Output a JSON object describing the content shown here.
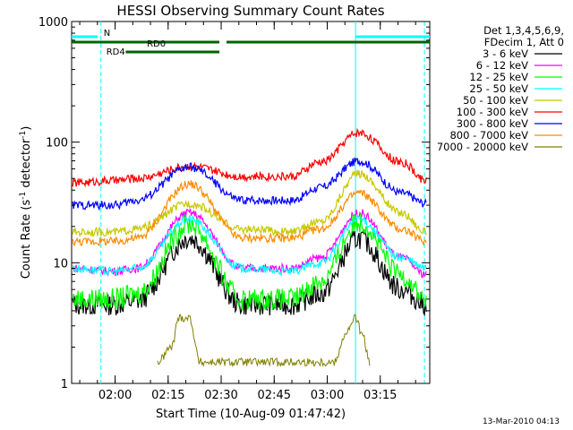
{
  "chart_data": {
    "type": "line",
    "title": "HESSI Observing Summary Count Rates",
    "xlabel": "Start Time (10-Aug-09 01:47:42)",
    "ylabel_main": "Count Rate (s",
    "ylabel_sup1": "-1",
    "ylabel_mid": " detector",
    "ylabel_sup2": "-1",
    "ylabel_end": ")",
    "yscale": "log",
    "ylim": [
      1,
      1000
    ],
    "xlim": [
      "01:47:42",
      "03:29:00"
    ],
    "x_ticks": [
      "02:00",
      "02:15",
      "02:30",
      "02:45",
      "03:00",
      "03:15"
    ],
    "y_ticks": [
      "1",
      "10",
      "100",
      "1000"
    ],
    "legend_header": [
      "Det 1,3,4,5,6,9,",
      "FDecim 1, Att 0"
    ],
    "series": [
      {
        "name": "3 - 6 keV",
        "color": "#000000",
        "x": [
          "01:48",
          "02:00",
          "02:06",
          "02:21",
          "02:36",
          "02:50",
          "02:58",
          "03:09",
          "03:21",
          "03:28"
        ],
        "y": [
          4.5,
          4.5,
          4.8,
          16,
          4.5,
          4.5,
          5.5,
          16,
          6,
          4.5
        ]
      },
      {
        "name": "6 - 12 keV",
        "color": "#ff00ff",
        "x": [
          "01:48",
          "02:00",
          "02:06",
          "02:21",
          "02:36",
          "02:50",
          "02:58",
          "03:09",
          "03:21",
          "03:28"
        ],
        "y": [
          9,
          8.5,
          9,
          26,
          9,
          9,
          11,
          26,
          11,
          8
        ]
      },
      {
        "name": "12 - 25 keV",
        "color": "#00ff00",
        "x": [
          "01:48",
          "02:00",
          "02:06",
          "02:21",
          "02:36",
          "02:50",
          "02:58",
          "03:09",
          "03:21",
          "03:28"
        ],
        "y": [
          5,
          5,
          5.5,
          21,
          5,
          5,
          7,
          22,
          8,
          5
        ]
      },
      {
        "name": "25 - 50 keV",
        "color": "#00ffff",
        "x": [
          "01:48",
          "02:00",
          "02:06",
          "02:21",
          "02:36",
          "02:50",
          "02:58",
          "03:09",
          "03:21",
          "03:28"
        ],
        "y": [
          9,
          8.5,
          9,
          23,
          9,
          8.5,
          10,
          23,
          11,
          9
        ]
      },
      {
        "name": "50 - 100 keV",
        "color": "#c8c800",
        "x": [
          "01:48",
          "02:00",
          "02:06",
          "02:21",
          "02:36",
          "02:50",
          "02:58",
          "03:09",
          "03:21",
          "03:28"
        ],
        "y": [
          18,
          18,
          19,
          31,
          19,
          18,
          22,
          55,
          26,
          18
        ]
      },
      {
        "name": "100 - 300 keV",
        "color": "#ff0000",
        "x": [
          "01:48",
          "02:00",
          "02:06",
          "02:21",
          "02:36",
          "02:50",
          "02:58",
          "03:09",
          "03:21",
          "03:28"
        ],
        "y": [
          46,
          48,
          50,
          63,
          52,
          52,
          68,
          120,
          68,
          48
        ]
      },
      {
        "name": "300 - 800 keV",
        "color": "#0000ff",
        "x": [
          "01:48",
          "02:00",
          "02:06",
          "02:21",
          "02:36",
          "02:50",
          "02:58",
          "03:09",
          "03:21",
          "03:28"
        ],
        "y": [
          30,
          30,
          33,
          62,
          33,
          33,
          42,
          70,
          38,
          31
        ]
      },
      {
        "name": "800 - 7000 keV",
        "color": "#ff8c00",
        "x": [
          "01:48",
          "02:00",
          "02:06",
          "02:21",
          "02:36",
          "02:50",
          "02:58",
          "03:09",
          "03:21",
          "03:28"
        ],
        "y": [
          15,
          15,
          16,
          45,
          16,
          16,
          19,
          38,
          19,
          15
        ]
      },
      {
        "name": "7000 - 20000 keV",
        "color": "#808000",
        "x": [
          "02:12",
          "02:16",
          "02:18",
          "02:21",
          "02:24",
          "03:02",
          "03:05",
          "03:08",
          "03:10",
          "03:12"
        ],
        "y": [
          1.5,
          2,
          3.5,
          3.5,
          1.5,
          1.5,
          2.5,
          3.5,
          2.5,
          1.5
        ]
      }
    ],
    "annotations": {
      "N": "N",
      "RD0": "RD0",
      "RD4": "RD4"
    },
    "segment_colors": {
      "N": "#00ffff",
      "RD0": "#006400",
      "RD4": "#006400",
      "vertical_markers": "#00ffff"
    }
  },
  "footer": {
    "timestamp": "13-Mar-2010 04:13"
  }
}
